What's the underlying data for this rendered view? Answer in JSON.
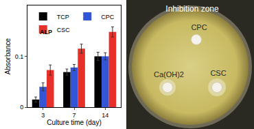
{
  "chart_data": {
    "type": "bar",
    "title": "ALP",
    "x_label": "Culture time (day)",
    "y_label": "Absorbance",
    "categories": [
      "3",
      "7",
      "14"
    ],
    "series": [
      {
        "name": "TCP",
        "color": "#000000",
        "values": [
          0.015,
          0.069,
          0.1
        ],
        "errors": [
          0.005,
          0.006,
          0.008
        ]
      },
      {
        "name": "CPC",
        "color": "#3355d6",
        "values": [
          0.04,
          0.078,
          0.1
        ],
        "errors": [
          0.008,
          0.006,
          0.007
        ]
      },
      {
        "name": "CSC",
        "color": "#e8302a",
        "values": [
          0.073,
          0.115,
          0.148
        ],
        "errors": [
          0.01,
          0.009,
          0.01
        ]
      }
    ],
    "ylim": [
      0,
      0.2
    ],
    "yticks": [
      0,
      0.1
    ],
    "legend": "upper left",
    "grid": false
  },
  "photo": {
    "title": "Inhibition zone",
    "labels": [
      "CPC",
      "Ca(OH)2",
      "CSC"
    ]
  }
}
